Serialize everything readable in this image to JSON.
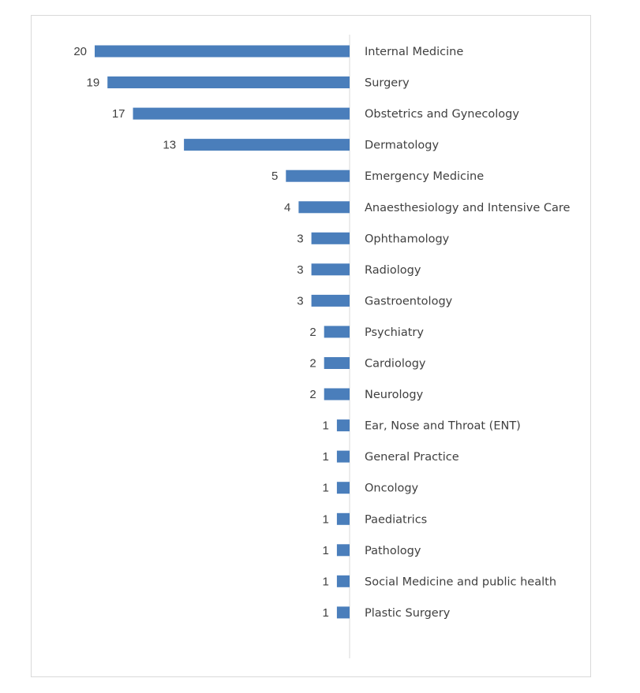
{
  "chart_data": {
    "type": "bar",
    "orientation": "horizontal",
    "title": "",
    "xlabel": "",
    "ylabel": "",
    "categories": [
      "Internal Medicine",
      "Surgery",
      "Obstetrics and Gynecology",
      "Dermatology",
      "Emergency Medicine",
      "Anaesthesiology and Intensive Care",
      "Ophthamology",
      "Radiology",
      "Gastroentology",
      "Psychiatry",
      "Cardiology",
      "Neurology",
      "Ear, Nose and Throat (ENT)",
      "General Practice",
      "Oncology",
      "Paediatrics",
      "Pathology",
      "Social Medicine and public health",
      "Plastic Surgery"
    ],
    "values": [
      20,
      19,
      17,
      13,
      5,
      4,
      3,
      3,
      3,
      2,
      2,
      2,
      1,
      1,
      1,
      1,
      1,
      1,
      1
    ],
    "data_labels": true,
    "axis_direction": "reversed",
    "legend": "none",
    "grid": false,
    "colors": {
      "bar": "#4a7ebb",
      "axis": "#d9d9d9",
      "text": "#404040"
    }
  }
}
